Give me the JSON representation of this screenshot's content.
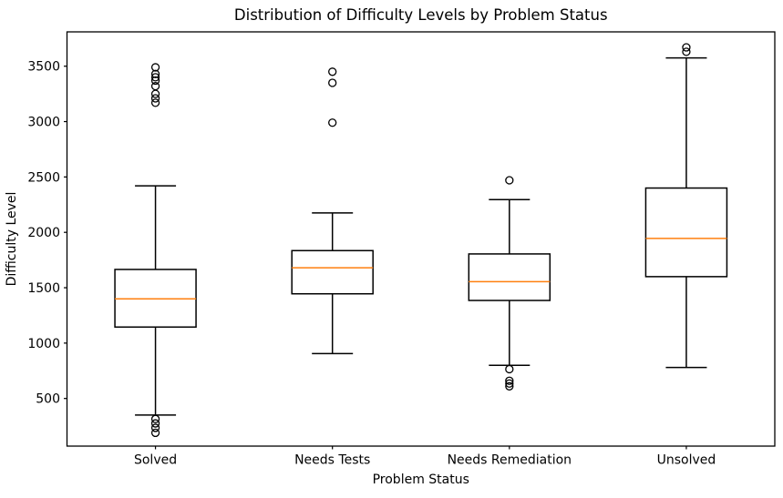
{
  "figure": {
    "background": "#ffffff",
    "frame_color": "#000000"
  },
  "chart_data": {
    "type": "boxplot",
    "title": "Distribution of Difficulty Levels by Problem Status",
    "xlabel": "Problem Status",
    "ylabel": "Difficulty Level",
    "categories": [
      "Solved",
      "Needs Tests",
      "Needs Remediation",
      "Unsolved"
    ],
    "yticks": [
      500,
      1000,
      1500,
      2000,
      2500,
      3000,
      3500
    ],
    "ylim": [
      70,
      3810
    ],
    "grid": false,
    "legend": "none",
    "box_edge_color": "#000000",
    "median_color": "#ff7f0e",
    "series": [
      {
        "name": "Solved",
        "whisker_low": 350,
        "q1": 1145,
        "median": 1400,
        "q3": 1665,
        "whisker_high": 2420,
        "outliers": [
          3490,
          3430,
          3400,
          3370,
          3320,
          3250,
          3210,
          3170,
          315,
          275,
          235,
          190
        ]
      },
      {
        "name": "Needs Tests",
        "whisker_low": 905,
        "q1": 1445,
        "median": 1680,
        "q3": 1835,
        "whisker_high": 2175,
        "outliers": [
          3450,
          3350,
          2990
        ]
      },
      {
        "name": "Needs Remediation",
        "whisker_low": 800,
        "q1": 1385,
        "median": 1555,
        "q3": 1805,
        "whisker_high": 2295,
        "outliers": [
          2470,
          765,
          660,
          635,
          610
        ]
      },
      {
        "name": "Unsolved",
        "whisker_low": 780,
        "q1": 1600,
        "median": 1945,
        "q3": 2400,
        "whisker_high": 3575,
        "outliers": [
          3670,
          3630
        ]
      }
    ]
  }
}
